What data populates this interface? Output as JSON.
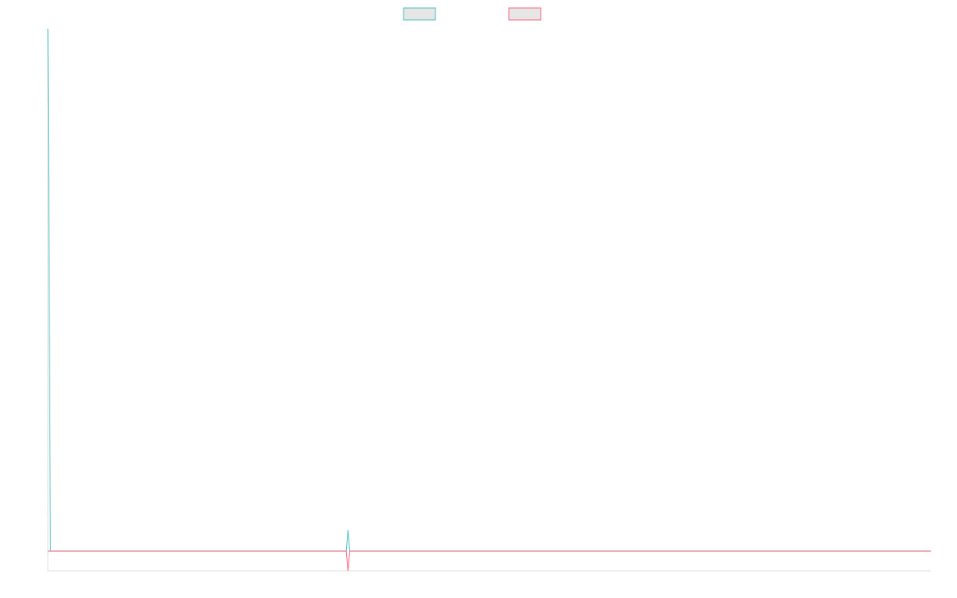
{
  "chart_data": {
    "type": "line",
    "x": [
      0,
      0.3,
      9.9,
      33.8,
      34,
      34.2,
      41,
      100
    ],
    "series": [
      {
        "color": "#4bc0c0",
        "values": [
          100,
          0,
          0,
          0,
          4,
          0,
          0,
          0
        ]
      },
      {
        "color": "#ff6384",
        "values": [
          0,
          0,
          0,
          0,
          -3.8,
          0,
          0,
          0
        ]
      }
    ],
    "xlim": [
      0,
      100
    ],
    "ylim": [
      -3.8,
      100
    ]
  }
}
